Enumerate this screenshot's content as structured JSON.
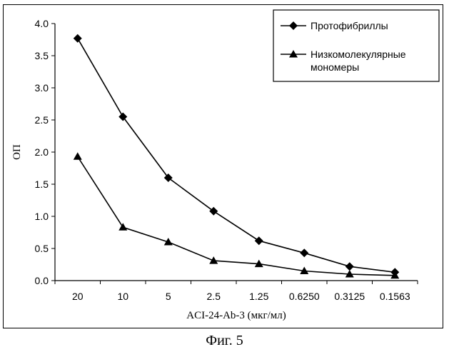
{
  "chart_data": {
    "type": "line",
    "title": "",
    "xlabel": "ACI-24-Ab-3 (мкг/мл)",
    "ylabel": "ОП",
    "categories": [
      "20",
      "10",
      "5",
      "2.5",
      "1.25",
      "0.6250",
      "0.3125",
      "0.1563"
    ],
    "ylim": [
      0,
      4
    ],
    "yticks": [
      "0.0",
      "0.5",
      "1.0",
      "1.5",
      "2.0",
      "2.5",
      "3.0",
      "3.5",
      "4.0"
    ],
    "grid": false,
    "legend_position": "top-right",
    "series": [
      {
        "name": "Протофибриллы",
        "marker": "diamond",
        "values": [
          3.77,
          2.55,
          1.6,
          1.08,
          0.62,
          0.43,
          0.22,
          0.13
        ]
      },
      {
        "name": "Низкомолекулярные мономеры",
        "marker": "triangle",
        "values": [
          1.93,
          0.83,
          0.6,
          0.31,
          0.26,
          0.15,
          0.1,
          0.08
        ]
      }
    ]
  },
  "legend": {
    "lines": [
      [
        "Протофибриллы"
      ],
      [
        "Низкомолекулярные",
        "мономеры"
      ]
    ]
  },
  "caption": "Фиг. 5",
  "colors": {
    "ink": "#000000",
    "background": "#ffffff"
  }
}
